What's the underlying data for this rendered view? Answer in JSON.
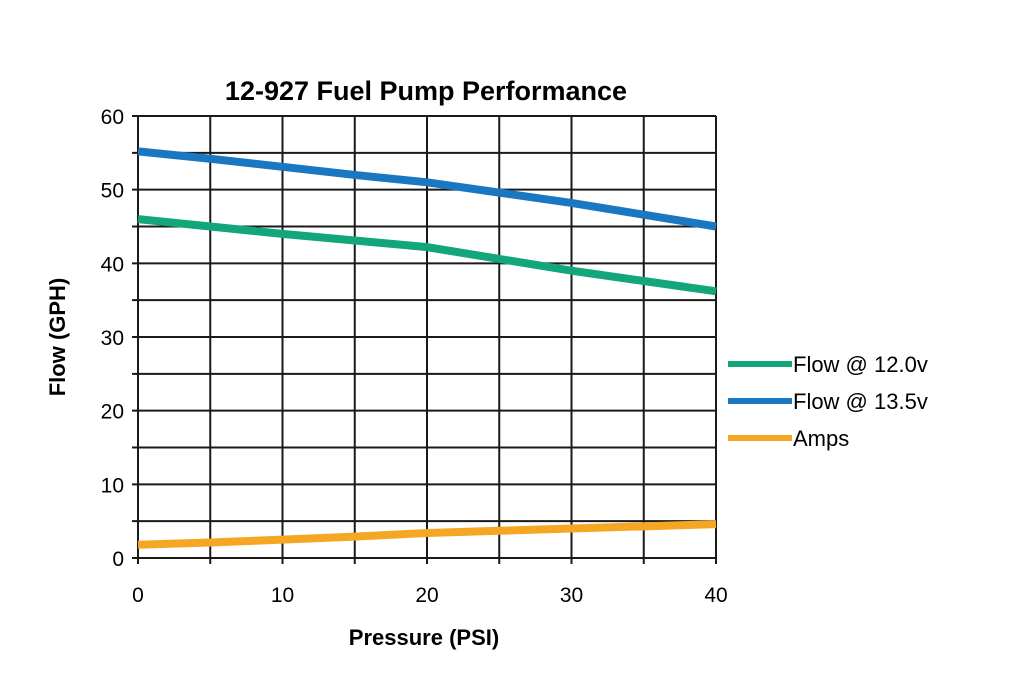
{
  "chart_data": {
    "type": "line",
    "title": "12-927 Fuel Pump Performance",
    "xlabel": "Pressure (PSI)",
    "ylabel": "Flow (GPH)",
    "xlim": [
      0,
      40
    ],
    "ylim": [
      0,
      60
    ],
    "x_ticks": [
      "0",
      "10",
      "20",
      "30",
      "40"
    ],
    "y_ticks": [
      "0",
      "10",
      "20",
      "30",
      "40",
      "50",
      "60"
    ],
    "grid": true,
    "grid_step_x": 5,
    "grid_step_y": 5,
    "legend_position": "right",
    "x": [
      0,
      5,
      10,
      15,
      20,
      25,
      30,
      35,
      40
    ],
    "series": [
      {
        "name": "Flow @ 12.0v",
        "color": "#12a67a",
        "values": [
          46,
          45,
          44,
          43.1,
          42.2,
          40.6,
          39,
          37.6,
          36.2
        ]
      },
      {
        "name": "Flow @ 13.5v",
        "color": "#1a78c2",
        "values": [
          55.2,
          54.2,
          53.1,
          52,
          51,
          49.6,
          48.2,
          46.6,
          45
        ]
      },
      {
        "name": "Amps",
        "color": "#f5a623",
        "values": [
          1.8,
          2.1,
          2.5,
          2.9,
          3.4,
          3.7,
          4,
          4.3,
          4.6
        ]
      }
    ]
  }
}
